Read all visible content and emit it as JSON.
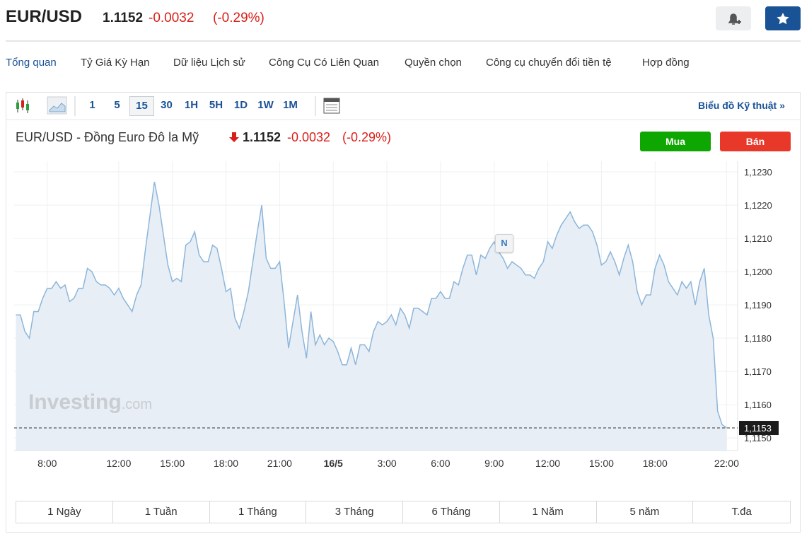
{
  "header": {
    "symbol": "EUR/USD",
    "price": "1.1152",
    "change": "-0.0032",
    "change_pct": "(-0.29%)"
  },
  "tabs": [
    "Tổng quan",
    "Tỷ Giá Kỳ Hạn",
    "Dữ liệu Lịch sử",
    "Công Cụ Có Liên Quan",
    "Quyền chọn",
    "Công cụ chuyển đổi tiền tệ",
    "Hợp đồng"
  ],
  "toolbar": {
    "intervals": [
      "1",
      "5",
      "15",
      "30",
      "1H",
      "5H",
      "1D",
      "1W",
      "1M"
    ],
    "technical_link": "Biểu đồ Kỹ thuật »"
  },
  "chart_header": {
    "title": "EUR/USD - Đồng Euro Đô la Mỹ",
    "price": "1.1152",
    "change": "-0.0032",
    "change_pct": "(-0.29%)",
    "buy": "Mua",
    "sell": "Bán"
  },
  "periods": [
    "1 Ngày",
    "1 Tuần",
    "1 Tháng",
    "3 Tháng",
    "6 Tháng",
    "1 Năm",
    "5 năm",
    "T.đa"
  ],
  "watermark": {
    "brand": "Investing",
    "suffix": ".com"
  },
  "annotation": "N",
  "chart_data": {
    "type": "area",
    "color": "#8db6d9",
    "fill": "#e7eef6",
    "grid": true,
    "xlim": [
      6.15,
      46.5
    ],
    "ylim": [
      1.11462,
      1.12332
    ],
    "xticks": [
      {
        "value": 8,
        "label": "8:00"
      },
      {
        "value": 12,
        "label": "12:00"
      },
      {
        "value": 15,
        "label": "15:00"
      },
      {
        "value": 18,
        "label": "18:00"
      },
      {
        "value": 21,
        "label": "21:00"
      },
      {
        "value": 24,
        "label": "16/5"
      },
      {
        "value": 27,
        "label": "3:00"
      },
      {
        "value": 30,
        "label": "6:00"
      },
      {
        "value": 33,
        "label": "9:00"
      },
      {
        "value": 36,
        "label": "12:00"
      },
      {
        "value": 39,
        "label": "15:00"
      },
      {
        "value": 42,
        "label": "18:00"
      },
      {
        "value": 46,
        "label": "22:00"
      }
    ],
    "yticks": [
      {
        "value": 1.115,
        "label": "1,1150"
      },
      {
        "value": 1.116,
        "label": "1,1160"
      },
      {
        "value": 1.117,
        "label": "1,1170"
      },
      {
        "value": 1.118,
        "label": "1,1180"
      },
      {
        "value": 1.119,
        "label": "1,1190"
      },
      {
        "value": 1.12,
        "label": "1,1200"
      },
      {
        "value": 1.121,
        "label": "1,1210"
      },
      {
        "value": 1.122,
        "label": "1,1220"
      },
      {
        "value": 1.123,
        "label": "1,1230"
      }
    ],
    "price_line": {
      "value": 1.1153,
      "label": "1,1153"
    },
    "x": [
      6.25,
      6.5,
      6.75,
      7,
      7.25,
      7.5,
      7.75,
      8,
      8.25,
      8.5,
      8.75,
      9,
      9.25,
      9.5,
      9.75,
      10,
      10.25,
      10.5,
      10.75,
      11,
      11.25,
      11.5,
      11.75,
      12,
      12.25,
      12.5,
      12.75,
      13,
      13.25,
      13.5,
      13.75,
      14,
      14.25,
      14.5,
      14.75,
      15,
      15.25,
      15.5,
      15.75,
      16,
      16.25,
      16.5,
      16.75,
      17,
      17.25,
      17.5,
      17.75,
      18,
      18.25,
      18.5,
      18.75,
      19,
      19.25,
      19.5,
      19.75,
      20,
      20.25,
      20.5,
      20.75,
      21,
      21.25,
      21.5,
      21.75,
      22,
      22.25,
      22.5,
      22.75,
      23,
      23.25,
      23.5,
      23.75,
      24,
      24.25,
      24.5,
      24.75,
      25,
      25.25,
      25.5,
      25.75,
      26,
      26.25,
      26.5,
      26.75,
      27,
      27.25,
      27.5,
      27.75,
      28,
      28.25,
      28.5,
      28.75,
      29,
      29.25,
      29.5,
      29.75,
      30,
      30.25,
      30.5,
      30.75,
      31,
      31.25,
      31.5,
      31.75,
      32,
      32.25,
      32.5,
      32.75,
      33,
      33.25,
      33.5,
      33.75,
      34,
      34.25,
      34.5,
      34.75,
      35,
      35.25,
      35.5,
      35.75,
      36,
      36.25,
      36.5,
      36.75,
      37,
      37.25,
      37.5,
      37.75,
      38,
      38.25,
      38.5,
      38.75,
      39,
      39.25,
      39.5,
      39.75,
      40,
      40.25,
      40.5,
      40.75,
      41,
      41.25,
      41.5,
      41.75,
      42,
      42.25,
      42.5,
      42.75,
      43,
      43.25,
      43.5,
      43.75,
      44,
      44.25,
      44.5,
      44.75,
      45,
      45.25,
      45.5,
      45.75,
      46
    ],
    "values": [
      1.1187,
      1.1187,
      1.1182,
      1.118,
      1.1188,
      1.1188,
      1.1192,
      1.1195,
      1.1195,
      1.1197,
      1.1195,
      1.1196,
      1.1191,
      1.1192,
      1.1195,
      1.1195,
      1.1201,
      1.12,
      1.1197,
      1.1196,
      1.1196,
      1.1195,
      1.1193,
      1.1195,
      1.1192,
      1.119,
      1.1188,
      1.1193,
      1.1196,
      1.1207,
      1.1217,
      1.1227,
      1.122,
      1.1211,
      1.1202,
      1.1197,
      1.1198,
      1.1197,
      1.1208,
      1.1209,
      1.1212,
      1.1205,
      1.1203,
      1.1203,
      1.1208,
      1.1207,
      1.1201,
      1.1194,
      1.1195,
      1.1186,
      1.1183,
      1.1188,
      1.1194,
      1.1203,
      1.1212,
      1.122,
      1.1204,
      1.1201,
      1.1201,
      1.1203,
      1.1191,
      1.1177,
      1.1185,
      1.1193,
      1.1182,
      1.1174,
      1.1188,
      1.1178,
      1.1181,
      1.1178,
      1.118,
      1.1179,
      1.1176,
      1.1172,
      1.1172,
      1.1177,
      1.1172,
      1.1178,
      1.1178,
      1.1176,
      1.1182,
      1.1185,
      1.1184,
      1.1185,
      1.1187,
      1.1184,
      1.1189,
      1.1187,
      1.1183,
      1.1189,
      1.1189,
      1.1188,
      1.1187,
      1.1192,
      1.1192,
      1.1194,
      1.1192,
      1.1192,
      1.1197,
      1.1196,
      1.1201,
      1.1205,
      1.1205,
      1.1199,
      1.1205,
      1.1204,
      1.1207,
      1.1209,
      1.1206,
      1.1204,
      1.1201,
      1.1203,
      1.1202,
      1.1201,
      1.1199,
      1.1199,
      1.1198,
      1.1201,
      1.1203,
      1.1209,
      1.1207,
      1.1211,
      1.1214,
      1.1216,
      1.1218,
      1.1215,
      1.1213,
      1.1214,
      1.1214,
      1.1212,
      1.1208,
      1.1202,
      1.1203,
      1.1206,
      1.1203,
      1.1199,
      1.1204,
      1.1208,
      1.1203,
      1.1194,
      1.119,
      1.1193,
      1.1193,
      1.1201,
      1.1205,
      1.1202,
      1.1197,
      1.1195,
      1.1193,
      1.1197,
      1.1195,
      1.1197,
      1.119,
      1.1197,
      1.1201,
      1.1187,
      1.118,
      1.1158,
      1.1154,
      1.1153
    ]
  }
}
